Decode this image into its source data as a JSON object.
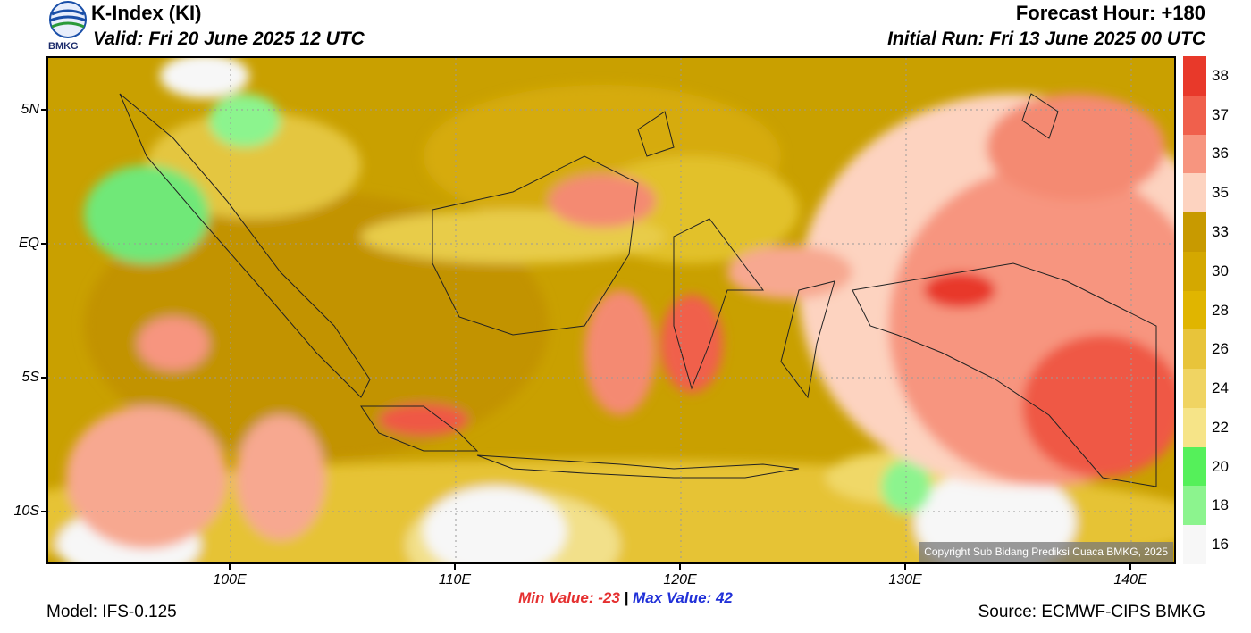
{
  "header": {
    "title": "K-Index (KI)",
    "valid": "Valid: Fri 20 June 2025 12 UTC",
    "forecast_hour": "Forecast Hour: +180",
    "initial_run": "Initial Run: Fri 13 June 2025 00 UTC",
    "logo_text": "BMKG"
  },
  "map": {
    "lat_labels": [
      "5N",
      "EQ",
      "5S",
      "10S"
    ],
    "lon_labels": [
      "100E",
      "110E",
      "120E",
      "130E",
      "140E"
    ],
    "copyright": "Copyright Sub Bidang Prediksi Cuaca BMKG, 2025"
  },
  "legend": {
    "levels": [
      "38",
      "37",
      "36",
      "35",
      "33",
      "30",
      "28",
      "26",
      "24",
      "22",
      "20",
      "18",
      "16"
    ],
    "colors": [
      "#e8392a",
      "#f0604c",
      "#f7957f",
      "#fdd3c0",
      "#c89a00",
      "#d4a800",
      "#e0b500",
      "#e8c43a",
      "#f0d462",
      "#f6e488",
      "#55f05a",
      "#8cf48e",
      "#f7f7f7"
    ]
  },
  "footer": {
    "min_label": "Min Value: -23",
    "sep": "|",
    "max_label": "Max Value:  42",
    "model": "Model: IFS-0.125",
    "source": "Source: ECMWF-CIPS BMKG"
  }
}
